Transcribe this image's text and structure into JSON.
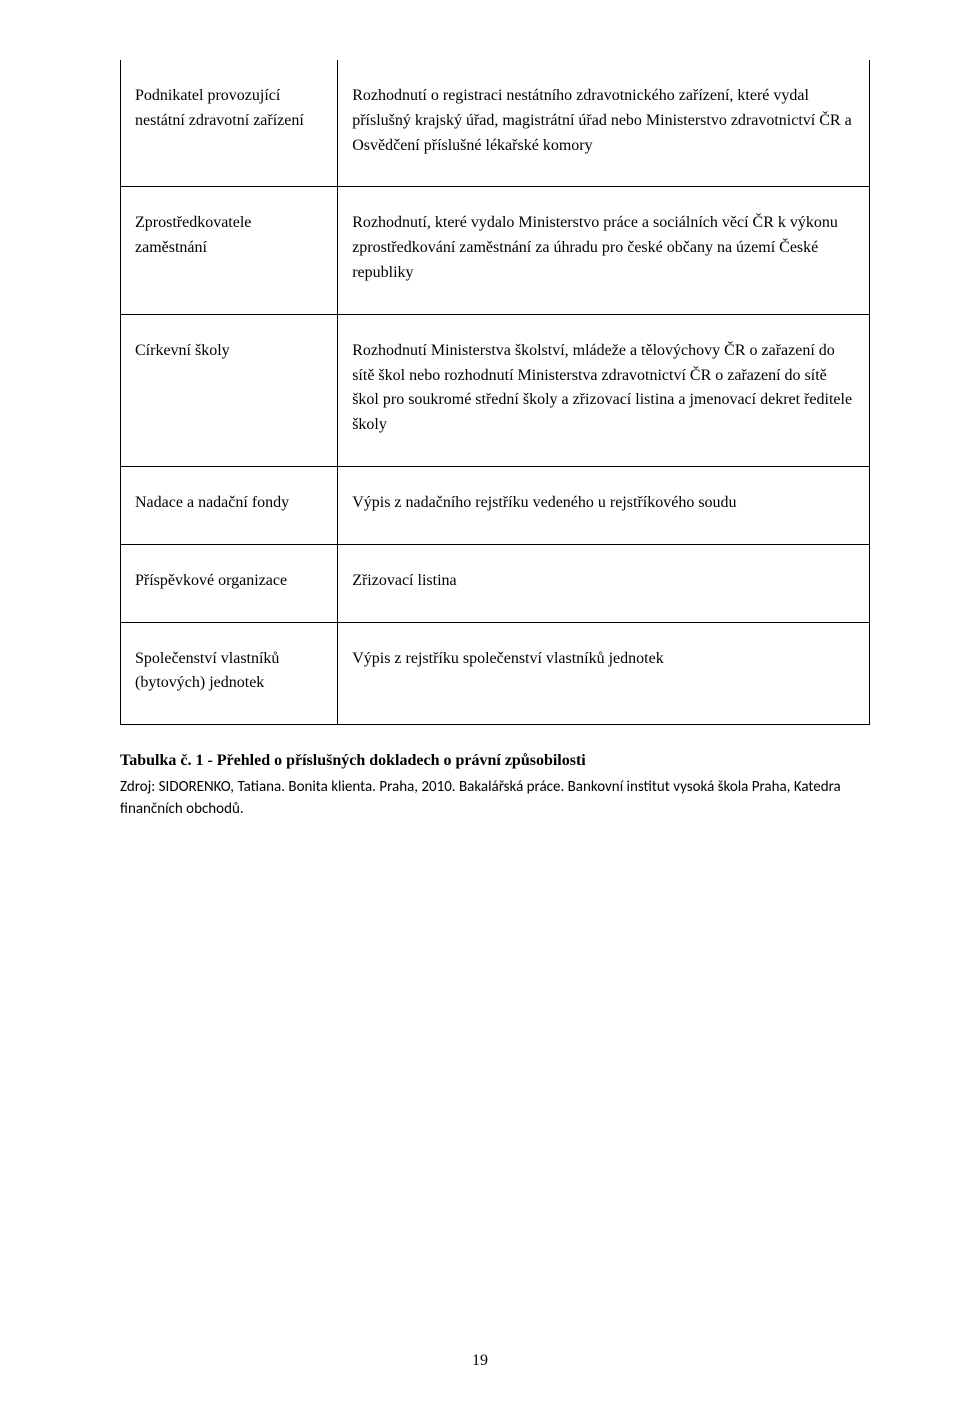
{
  "table": {
    "rows": [
      {
        "left": "Podnikatel provozující nestátní zdravotní zařízení",
        "right": "Rozhodnutí o registraci nestátního zdravotnického zařízení, které vydal příslušný krajský úřad, magistrátní úřad nebo Ministerstvo zdravotnictví ČR a Osvědčení příslušné lékařské komory"
      },
      {
        "left": "Zprostředkovatele zaměstnání",
        "right": "Rozhodnutí, které vydalo Ministerstvo práce a sociálních věcí ČR k výkonu zprostředkování zaměstnání za úhradu pro české občany na území České republiky"
      },
      {
        "left": "Církevní školy",
        "right": "Rozhodnutí Ministerstva školství, mládeže a tělovýchovy ČR o zařazení do sítě škol nebo rozhodnutí Ministerstva zdravotnictví ČR o zařazení do sítě škol pro soukromé střední školy a zřizovací listina a jmenovací dekret ředitele školy"
      },
      {
        "left": "Nadace a nadační fondy",
        "right": "Výpis z nadačního rejstříku vedeného u rejstříkového soudu"
      },
      {
        "left": "Příspěvkové organizace",
        "right": "Zřizovací listina"
      },
      {
        "left": "Společenství vlastníků (bytových) jednotek",
        "right": "Výpis z rejstříku společenství vlastníků jednotek"
      }
    ]
  },
  "caption": "Tabulka č. 1 - Přehled o příslušných dokladech o právní způsobilosti",
  "source": "Zdroj: SIDORENKO, Tatiana. Bonita klienta. Praha, 2010. Bakalářská práce. Bankovní institut vysoká škola Praha, Katedra finančních obchodů.",
  "page_number": "19"
}
